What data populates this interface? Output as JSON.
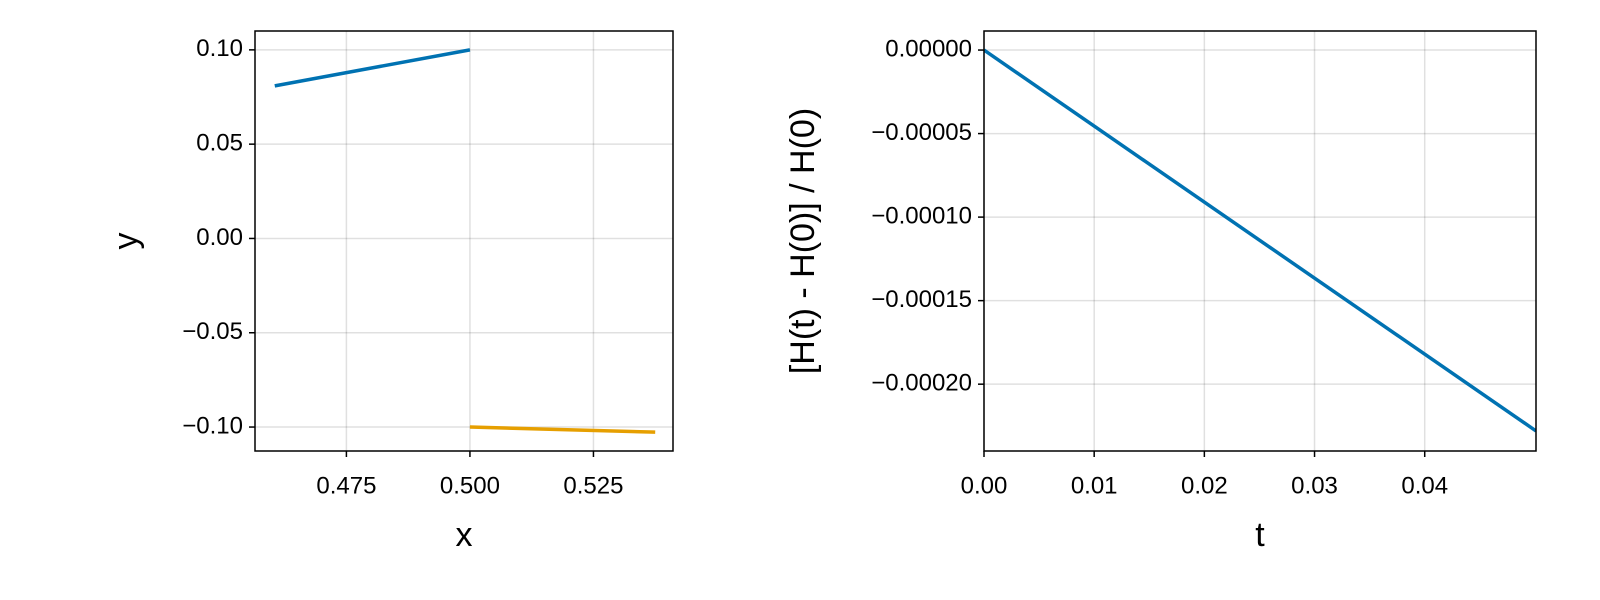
{
  "chart_data": [
    {
      "type": "line",
      "xlabel": "x",
      "ylabel": "y",
      "xlim": [
        0.4565,
        0.5411
      ],
      "ylim": [
        -0.1127,
        0.11
      ],
      "xticks": [
        0.475,
        {
          "value": 0.5,
          "label": "0.500"
        },
        0.525
      ],
      "yticks": [
        {
          "value": 0.1,
          "label": "0.10"
        },
        0.05,
        {
          "value": 0,
          "label": "0.00"
        },
        {
          "value": -0.05,
          "label": "−0.05"
        },
        {
          "value": -0.1,
          "label": "−0.10"
        }
      ],
      "grid": true,
      "series": [
        {
          "color": "#0072b2",
          "x": [
            0.4605,
            0.5
          ],
          "values": [
            0.0809,
            0.1
          ]
        },
        {
          "color": "#e69f00",
          "x": [
            0.5,
            0.5375
          ],
          "values": [
            -0.1,
            -0.1027
          ]
        }
      ]
    },
    {
      "type": "line",
      "xlabel": "t",
      "ylabel": "[H(t) - H(0)] / H(0)",
      "xlim": [
        0,
        0.0501
      ],
      "ylim": [
        -0.00024,
        1.14e-05
      ],
      "xticks": [
        {
          "value": 0,
          "label": "0.00"
        },
        0.01,
        0.02,
        0.03,
        0.04
      ],
      "yticks": [
        {
          "value": 0,
          "label": "0.00000"
        },
        {
          "value": -5e-05,
          "label": "−0.00005"
        },
        {
          "value": -0.0001,
          "label": "−0.00010"
        },
        {
          "value": -0.00015,
          "label": "−0.00015"
        },
        {
          "value": -0.0002,
          "label": "−0.00020"
        }
      ],
      "grid": true,
      "series": [
        {
          "color": "#0072b2",
          "x": [
            0,
            0.0501
          ],
          "values": [
            0,
            -0.000228
          ]
        }
      ]
    }
  ]
}
